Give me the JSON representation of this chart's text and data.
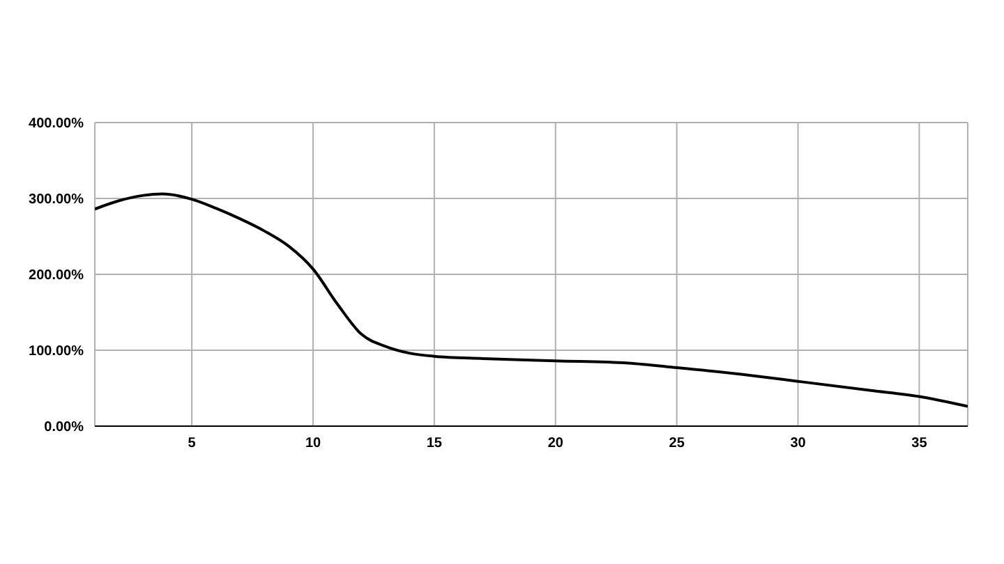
{
  "chart_data": {
    "type": "line",
    "x": [
      1,
      2,
      3,
      3.8,
      5,
      6,
      7,
      8,
      9,
      10,
      11,
      12,
      13,
      14,
      15,
      17,
      20,
      23,
      25,
      28,
      30,
      33,
      35,
      37
    ],
    "series": [
      {
        "color": "#000000",
        "values": [
          286,
          297,
          304,
          306,
          299,
          287,
          273,
          257,
          237,
          207,
          161,
          121,
          105,
          96,
          92,
          89,
          86,
          83,
          77,
          67,
          59,
          47,
          39,
          26
        ]
      }
    ],
    "xlim": [
      1,
      37
    ],
    "xticks": [
      5,
      10,
      15,
      20,
      25,
      30,
      35
    ],
    "ylim": [
      0,
      400
    ],
    "yticks": [
      {
        "value": 0,
        "label": "0.00%"
      },
      {
        "value": 100,
        "label": "100.00%"
      },
      {
        "value": 200,
        "label": "200.00%"
      },
      {
        "value": 300,
        "label": "300.00%"
      },
      {
        "value": 400,
        "label": "400.00%"
      }
    ],
    "grid": true,
    "marker": "none",
    "line_style": "solid"
  }
}
